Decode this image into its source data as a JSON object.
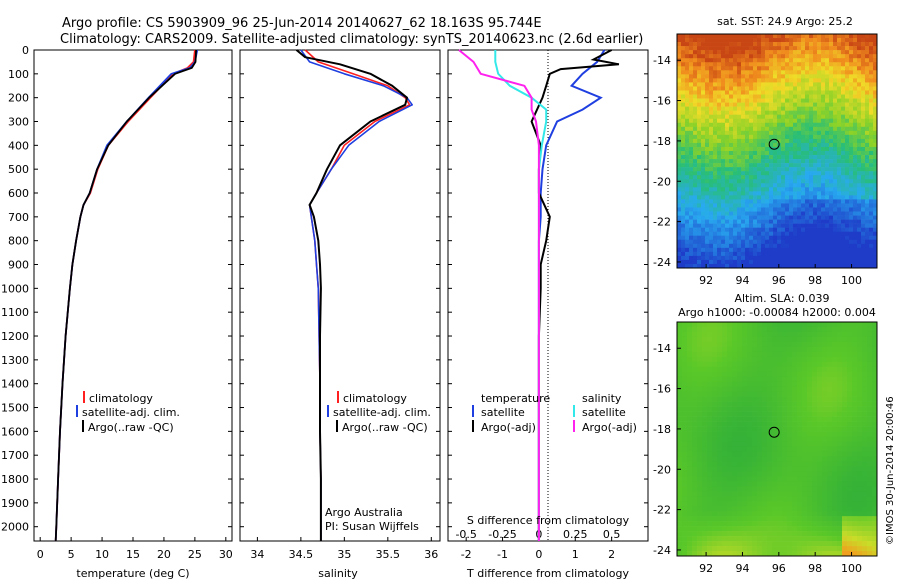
{
  "header": {
    "line1": "Argo profile: CS 5903909_96 25-Jun-2014 20140627_62 18.163S 95.744E",
    "line2": "Climatology: CARS2009. Satellite-adjusted climatology: synTS_20140623.nc (2.6d earlier)"
  },
  "colors": {
    "climatology": "#ff1f1f",
    "satellite_adj": "#1f3fe0",
    "argo": "#000000",
    "sat_salinity": "#33e8e8",
    "argo_salinity_adj": "#ff22ee"
  },
  "depth_axis": {
    "ticks": [
      "0",
      "100",
      "200",
      "300",
      "400",
      "500",
      "600",
      "700",
      "800",
      "900",
      "1000",
      "1100",
      "1200",
      "1300",
      "1400",
      "1500",
      "1600",
      "1700",
      "1800",
      "1900",
      "2000"
    ],
    "range": [
      0,
      2060
    ]
  },
  "panels": {
    "temperature": {
      "xlabel": "temperature (deg C)",
      "xticks": [
        "0",
        "5",
        "10",
        "15",
        "20",
        "25",
        "30"
      ],
      "legend": [
        "climatology",
        "satellite-adj. clim.",
        "Argo(..raw -QC)"
      ]
    },
    "salinity": {
      "xlabel": "salinity",
      "xticks": [
        "34",
        "34.5",
        "35",
        "35.5",
        "36"
      ],
      "legend": [
        "climatology",
        "satellite-adj. clim.",
        "Argo(..raw -QC)"
      ],
      "note1": "Argo Australia",
      "note2": "PI: Susan Wijffels"
    },
    "difference": {
      "xlabel_top": "S difference from climatology",
      "xticks_top": [
        "-0.5",
        "-0.25",
        "0",
        "0.25",
        "0.5"
      ],
      "xlabel_bottom": "T difference from climatology",
      "xticks_bottom": [
        "-2",
        "-1",
        "0",
        "1",
        "2"
      ],
      "legend_t_title": "temperature",
      "legend_s_title": "salinity",
      "legend_t": [
        "satellite",
        "Argo(-adj)"
      ],
      "legend_s": [
        "satellite",
        "Argo(-adj)"
      ]
    }
  },
  "maps": {
    "sst": {
      "title": "sat. SST: 24.9 Argo: 25.2",
      "yticks": [
        "-14",
        "-16",
        "-18",
        "-20",
        "-22",
        "-24"
      ],
      "xticks": [
        "92",
        "94",
        "96",
        "98",
        "100"
      ]
    },
    "sla": {
      "title1": "Altim. SLA: 0.039",
      "title2": "Argo h1000: -0.00084 h2000: 0.004",
      "yticks": [
        "-14",
        "-16",
        "-18",
        "-20",
        "-22",
        "-24"
      ],
      "xticks": [
        "92",
        "94",
        "96",
        "98",
        "100"
      ]
    },
    "argo_position": {
      "lon": 95.744,
      "lat": -18.163
    }
  },
  "side_label": "©IMOS 30-Jun-2014 20:00:46",
  "chart_data": [
    {
      "type": "line",
      "name_key": "temperature",
      "xlabel": "temperature (deg C)",
      "ylabel": "",
      "xlim": [
        -1,
        31
      ],
      "ylim": [
        2060,
        0
      ],
      "series": [
        {
          "name": "climatology",
          "depth": [
            0,
            50,
            75,
            100,
            200,
            300,
            400,
            500,
            600,
            650,
            700,
            800,
            900,
            1000,
            1200,
            1400,
            1600,
            1800,
            2000,
            2060
          ],
          "values": [
            25.0,
            24.8,
            23.8,
            21.5,
            17.8,
            14.2,
            11.0,
            9.3,
            8.1,
            7.0,
            6.5,
            5.8,
            5.2,
            4.8,
            4.1,
            3.6,
            3.2,
            2.9,
            2.6,
            2.5
          ]
        },
        {
          "name": "satellite-adj. clim.",
          "depth": [
            0,
            50,
            75,
            100,
            200,
            300,
            400,
            500,
            600,
            650,
            700,
            800,
            900,
            1000,
            1200,
            1400,
            1600,
            1800,
            2000,
            2060
          ],
          "values": [
            25.4,
            25.0,
            24.2,
            21.2,
            17.5,
            14.0,
            10.8,
            9.2,
            8.0,
            7.0,
            6.5,
            5.8,
            5.2,
            4.8,
            4.1,
            3.6,
            3.2,
            2.9,
            2.6,
            2.5
          ]
        },
        {
          "name": "Argo(..raw -QC)",
          "depth": [
            0,
            50,
            75,
            100,
            200,
            300,
            400,
            500,
            600,
            650,
            700,
            800,
            900,
            1000,
            1200,
            1400,
            1600,
            1800,
            2000,
            2060
          ],
          "values": [
            25.2,
            25.1,
            24.5,
            21.8,
            17.6,
            14.0,
            11.0,
            9.2,
            8.0,
            7.0,
            6.5,
            5.8,
            5.2,
            4.8,
            4.1,
            3.6,
            3.2,
            2.9,
            2.6,
            2.5
          ]
        }
      ]
    },
    {
      "type": "line",
      "name_key": "salinity",
      "xlabel": "salinity",
      "ylabel": "",
      "xlim": [
        33.8,
        36.1
      ],
      "ylim": [
        2060,
        0
      ],
      "series": [
        {
          "name": "climatology",
          "depth": [
            0,
            50,
            100,
            150,
            200,
            230,
            300,
            400,
            500,
            600,
            650,
            700,
            800,
            900,
            1000,
            1200,
            1400,
            1600,
            1800,
            2000,
            2060
          ],
          "values": [
            34.55,
            34.7,
            35.1,
            35.5,
            35.7,
            35.75,
            35.35,
            35.0,
            34.85,
            34.68,
            34.6,
            34.62,
            34.66,
            34.68,
            34.7,
            34.71,
            34.72,
            34.72,
            34.73,
            34.73,
            34.73
          ]
        },
        {
          "name": "satellite-adj. clim.",
          "depth": [
            0,
            50,
            100,
            150,
            200,
            230,
            300,
            400,
            500,
            600,
            650,
            700,
            800,
            900,
            1000,
            1200,
            1400,
            1600,
            1800,
            2000,
            2060
          ],
          "values": [
            34.5,
            34.6,
            35.0,
            35.45,
            35.72,
            35.78,
            35.4,
            35.05,
            34.85,
            34.68,
            34.6,
            34.62,
            34.66,
            34.68,
            34.7,
            34.71,
            34.72,
            34.72,
            34.73,
            34.73,
            34.73
          ]
        },
        {
          "name": "Argo(..raw -QC)",
          "depth": [
            0,
            30,
            60,
            100,
            150,
            200,
            230,
            300,
            400,
            500,
            600,
            650,
            700,
            800,
            900,
            1000,
            1200,
            1400,
            1600,
            1800,
            2000,
            2060
          ],
          "values": [
            34.45,
            34.55,
            34.95,
            35.3,
            35.55,
            35.72,
            35.7,
            35.3,
            34.95,
            34.8,
            34.68,
            34.6,
            34.65,
            34.7,
            34.72,
            34.73,
            34.72,
            34.72,
            34.72,
            34.73,
            34.73,
            34.73
          ]
        }
      ]
    },
    {
      "type": "line",
      "name_key": "difference",
      "xlabel": "T difference from climatology",
      "xlabel_top": "S difference from climatology",
      "ylabel": "",
      "xlim_T": [
        -2.5,
        3.0
      ],
      "xlim_S": [
        -0.625,
        0.75
      ],
      "ylim": [
        2060,
        0
      ],
      "series": [
        {
          "name": "satellite",
          "variable": "temperature",
          "depth": [
            0,
            50,
            100,
            150,
            200,
            250,
            300,
            400,
            500,
            600,
            700,
            800,
            900,
            1000,
            1200,
            1500,
            1800,
            2000,
            2060
          ],
          "values": [
            1.8,
            1.6,
            1.2,
            0.9,
            1.7,
            1.2,
            0.5,
            0.2,
            0.1,
            0.05,
            0.05,
            0.0,
            0.0,
            0.0,
            0.0,
            0.0,
            0.0,
            0.0,
            0.0
          ]
        },
        {
          "name": "Argo(-adj)",
          "variable": "temperature",
          "depth": [
            0,
            40,
            60,
            80,
            100,
            150,
            200,
            300,
            400,
            500,
            600,
            700,
            800,
            900,
            1000,
            1200,
            1500,
            1800,
            2000,
            2060
          ],
          "values": [
            2.0,
            1.5,
            2.2,
            0.6,
            0.3,
            0.2,
            0.1,
            -0.2,
            0.05,
            0.0,
            0.0,
            0.3,
            0.2,
            0.05,
            0.05,
            0.0,
            0.0,
            0.0,
            0.0,
            0.0
          ]
        },
        {
          "name": "satellite",
          "variable": "salinity",
          "depth": [
            0,
            50,
            100,
            150,
            200,
            250,
            300,
            400,
            500,
            600,
            700,
            800,
            900,
            1000,
            1200,
            1500,
            1800,
            2000,
            2060
          ],
          "values": [
            -0.3,
            -0.3,
            -0.28,
            -0.2,
            -0.05,
            0.05,
            0.05,
            0.02,
            0.0,
            0.0,
            0.0,
            0.0,
            0.0,
            0.0,
            0.0,
            0.0,
            0.0,
            0.0,
            0.0
          ]
        },
        {
          "name": "Argo(-adj)",
          "variable": "salinity",
          "depth": [
            0,
            50,
            100,
            150,
            200,
            250,
            300,
            400,
            500,
            600,
            700,
            800,
            900,
            1000,
            1200,
            1500,
            1800,
            2000,
            2060
          ],
          "values": [
            -0.55,
            -0.45,
            -0.4,
            -0.1,
            -0.05,
            -0.05,
            -0.02,
            0.0,
            0.0,
            0.0,
            0.0,
            0.0,
            0.0,
            0.0,
            0.0,
            0.0,
            0.0,
            0.0,
            0.0
          ]
        }
      ]
    }
  ]
}
